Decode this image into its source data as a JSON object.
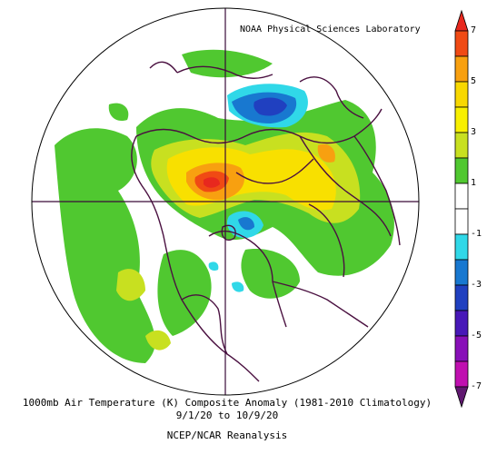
{
  "credit": "NOAA Physical Sciences Laboratory",
  "caption": {
    "line1": "1000mb Air Temperature (K) Composite Anomaly (1981-2010 Climatology)",
    "line2": "9/1/20  to 10/9/20",
    "line3": "NCEP/NCAR Reanalysis"
  },
  "colorbar": {
    "ticks": [
      "7",
      "5",
      "3",
      "1",
      "-1",
      "-3",
      "-5",
      "-7"
    ],
    "bins": [
      {
        "range": "7+",
        "color": "#e8281e"
      },
      {
        "range": "6 to 7",
        "color": "#f04a14"
      },
      {
        "range": "5 to 6",
        "color": "#f8a010"
      },
      {
        "range": "4 to 5",
        "color": "#f8d800"
      },
      {
        "range": "3 to 4",
        "color": "#f8f000"
      },
      {
        "range": "2 to 3",
        "color": "#c8e020"
      },
      {
        "range": "1 to 2",
        "color": "#50c830"
      },
      {
        "range": "0 to 1",
        "color": "#ffffff"
      },
      {
        "range": "-1 to 0",
        "color": "#ffffff"
      },
      {
        "range": "-2 to -1",
        "color": "#30d8e8"
      },
      {
        "range": "-3 to -2",
        "color": "#1878d0"
      },
      {
        "range": "-4 to -3",
        "color": "#2040c0"
      },
      {
        "range": "-5 to -4",
        "color": "#4818b8"
      },
      {
        "range": "-6 to -5",
        "color": "#8810b8"
      },
      {
        "range": "-7 to -6",
        "color": "#c010b0"
      },
      {
        "range": "< -7",
        "color": "#601870"
      }
    ]
  },
  "colors": {
    "coast": "#4a1040",
    "grid": "#3a0a38",
    "outline": "#000000"
  }
}
